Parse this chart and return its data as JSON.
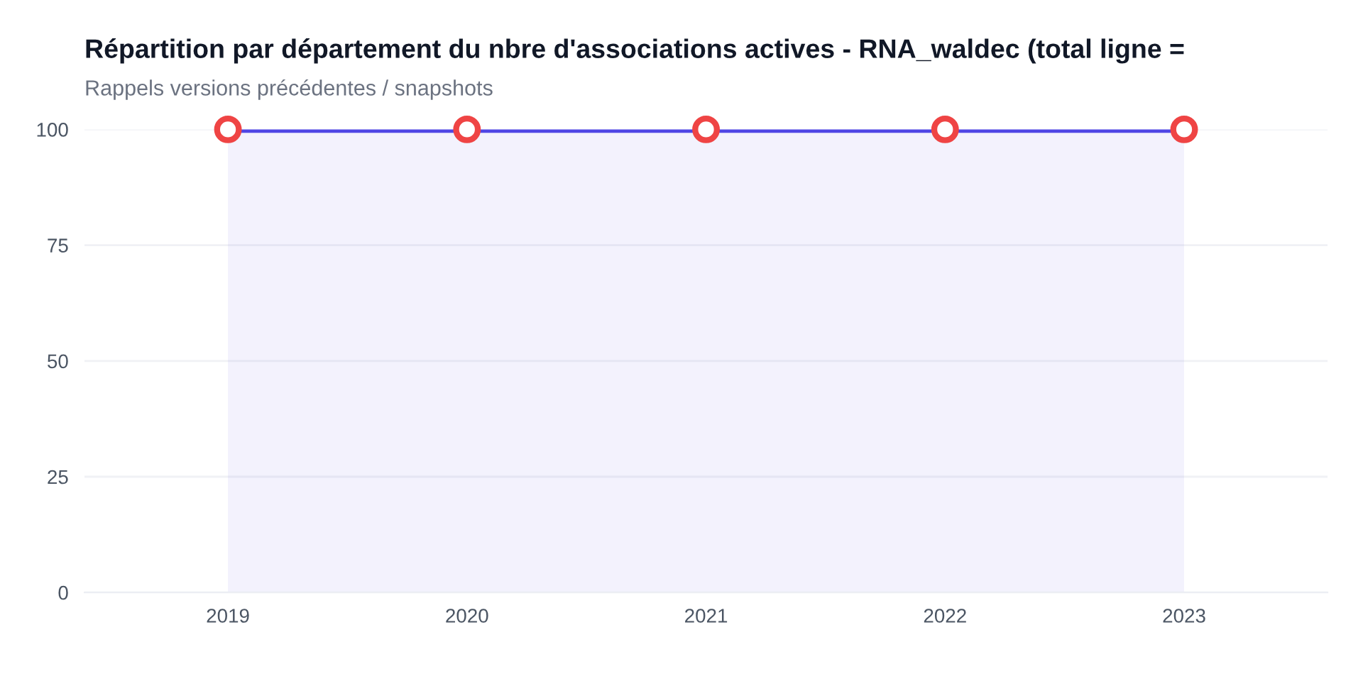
{
  "chart_data": {
    "type": "area",
    "title": "Répartition par département du nbre d'associations actives - RNA_waldec (total ligne =",
    "subtitle": "Rappels versions précédentes / snapshots",
    "categories": [
      "2019",
      "2020",
      "2021",
      "2022",
      "2023"
    ],
    "series": [
      {
        "color": "#4f46e5",
        "colors": [
          "#ef4444",
          "#ef4444",
          "#ef4444",
          "#ef4444",
          "#ef4444"
        ],
        "values": [
          100,
          100,
          100,
          100,
          100
        ]
      }
    ],
    "ylim": [
      0,
      100
    ],
    "yticks": [
      0,
      25,
      50,
      75,
      100
    ],
    "grid": "y",
    "marker": "circle",
    "line_style": "solid",
    "legend": false
  }
}
